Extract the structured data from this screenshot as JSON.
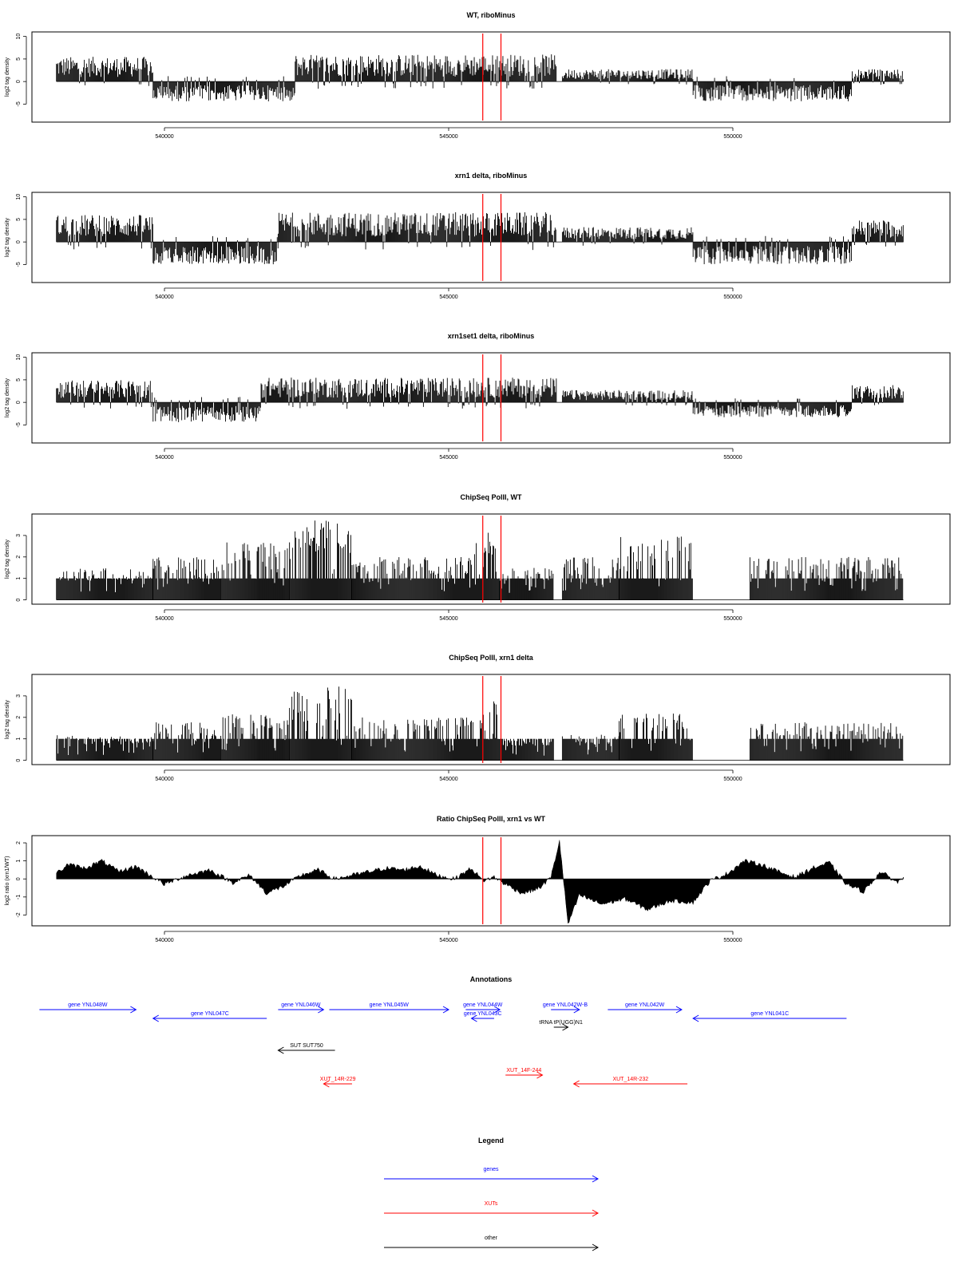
{
  "chart_data": [
    {
      "type": "bar",
      "title": "WT, riboMinus",
      "xlabel": "",
      "ylabel": "log2 tag density",
      "xlim": [
        537800,
        553000
      ],
      "ylim": [
        -9,
        11
      ],
      "yticks": [
        -5,
        0,
        5,
        10
      ],
      "xticks": [
        540000,
        545000,
        550000
      ],
      "xtick_labels": [
        "540000",
        "545000",
        "550000"
      ],
      "grid": false,
      "segments": [
        {
          "start": 538100,
          "end": 539800,
          "level": 5
        },
        {
          "start": 539800,
          "end": 542300,
          "level": -4
        },
        {
          "start": 542300,
          "end": 546900,
          "level": 5.5
        },
        {
          "start": 547000,
          "end": 549300,
          "level": 2.5
        },
        {
          "start": 549300,
          "end": 552100,
          "level": -4
        },
        {
          "start": 552100,
          "end": 553000,
          "level": 2.5
        }
      ],
      "markers": [
        545600,
        545920
      ]
    },
    {
      "type": "bar",
      "title": "xrn1 delta, riboMinus",
      "xlabel": "",
      "ylabel": "log2 tag density",
      "xlim": [
        537800,
        553000
      ],
      "ylim": [
        -9,
        11
      ],
      "yticks": [
        -5,
        0,
        5,
        10
      ],
      "xticks": [
        540000,
        545000,
        550000
      ],
      "xtick_labels": [
        "540000",
        "545000",
        "550000"
      ],
      "grid": false,
      "segments": [
        {
          "start": 538100,
          "end": 539800,
          "level": 5.5
        },
        {
          "start": 539800,
          "end": 542000,
          "level": -4.5
        },
        {
          "start": 542000,
          "end": 546900,
          "level": 6
        },
        {
          "start": 547000,
          "end": 549300,
          "level": 3
        },
        {
          "start": 549300,
          "end": 552100,
          "level": -4.5
        },
        {
          "start": 552100,
          "end": 553000,
          "level": 4.5
        }
      ],
      "markers": [
        545600,
        545920
      ]
    },
    {
      "type": "bar",
      "title": "xrn1set1 delta, riboMinus",
      "xlabel": "",
      "ylabel": "log2 tag density",
      "xlim": [
        537800,
        553000
      ],
      "ylim": [
        -9,
        11
      ],
      "yticks": [
        -5,
        0,
        5,
        10
      ],
      "xticks": [
        540000,
        545000,
        550000
      ],
      "xtick_labels": [
        "540000",
        "545000",
        "550000"
      ],
      "grid": false,
      "segments": [
        {
          "start": 538100,
          "end": 539800,
          "level": 4.5
        },
        {
          "start": 539800,
          "end": 541700,
          "level": -4
        },
        {
          "start": 541700,
          "end": 546900,
          "level": 5
        },
        {
          "start": 547000,
          "end": 549300,
          "level": 2.5
        },
        {
          "start": 549300,
          "end": 552100,
          "level": -3
        },
        {
          "start": 552100,
          "end": 553000,
          "level": 3.5
        }
      ],
      "markers": [
        545600,
        545920
      ]
    },
    {
      "type": "bar",
      "title": "ChipSeq PolII, WT",
      "xlabel": "",
      "ylabel": "log2 tag density",
      "xlim": [
        537800,
        553000
      ],
      "ylim": [
        -0.2,
        4
      ],
      "yticks": [
        0,
        1,
        2,
        3
      ],
      "xticks": [
        540000,
        545000,
        550000
      ],
      "xtick_labels": [
        "540000",
        "545000",
        "550000"
      ],
      "grid": false,
      "segments": [
        {
          "start": 538100,
          "end": 539800,
          "level": 1.5
        },
        {
          "start": 539800,
          "end": 541000,
          "level": 2
        },
        {
          "start": 541000,
          "end": 542200,
          "level": 2.7
        },
        {
          "start": 542200,
          "end": 543300,
          "level": 3.7
        },
        {
          "start": 543300,
          "end": 545400,
          "level": 2
        },
        {
          "start": 545400,
          "end": 545900,
          "level": 3.2
        },
        {
          "start": 545900,
          "end": 546850,
          "level": 1.5
        },
        {
          "start": 547000,
          "end": 548000,
          "level": 2
        },
        {
          "start": 548000,
          "end": 549300,
          "level": 3
        },
        {
          "start": 550300,
          "end": 553000,
          "level": 2
        }
      ],
      "markers": [
        545600,
        545920
      ]
    },
    {
      "type": "bar",
      "title": "ChipSeq PolII, xrn1 delta",
      "xlabel": "",
      "ylabel": "log2 tag density",
      "xlim": [
        537800,
        553000
      ],
      "ylim": [
        -0.2,
        4
      ],
      "yticks": [
        0,
        1,
        2,
        3
      ],
      "xticks": [
        540000,
        545000,
        550000
      ],
      "xtick_labels": [
        "540000",
        "545000",
        "550000"
      ],
      "grid": false,
      "segments": [
        {
          "start": 538100,
          "end": 539800,
          "level": 1.2
        },
        {
          "start": 539800,
          "end": 541000,
          "level": 1.8
        },
        {
          "start": 541000,
          "end": 542200,
          "level": 2.2
        },
        {
          "start": 542200,
          "end": 543300,
          "level": 3.6
        },
        {
          "start": 543300,
          "end": 545400,
          "level": 2
        },
        {
          "start": 545400,
          "end": 545920,
          "level": 2.8
        },
        {
          "start": 545920,
          "end": 546850,
          "level": 1
        },
        {
          "start": 547000,
          "end": 548000,
          "level": 1.2
        },
        {
          "start": 548000,
          "end": 549300,
          "level": 2.2
        },
        {
          "start": 550300,
          "end": 553000,
          "level": 1.8
        }
      ],
      "markers": [
        545600,
        545920
      ]
    },
    {
      "type": "area",
      "title": "Ratio ChipSeq PolII, xrn1 vs WT",
      "xlabel": "",
      "ylabel": "log2 ratio (xrn1/WT)",
      "xlim": [
        537800,
        553000
      ],
      "ylim": [
        -2.6,
        2.4
      ],
      "yticks": [
        -2,
        -1,
        0,
        1,
        2
      ],
      "xticks": [
        540000,
        545000,
        550000
      ],
      "xtick_labels": [
        "540000",
        "545000",
        "550000"
      ],
      "grid": false,
      "x": [
        538100,
        538300,
        538600,
        538900,
        539200,
        539500,
        539700,
        540000,
        540400,
        540800,
        541200,
        541500,
        541800,
        542100,
        542400,
        542700,
        543000,
        543300,
        543600,
        543900,
        544200,
        544500,
        544800,
        545100,
        545400,
        545600,
        545800,
        546000,
        546300,
        546600,
        546800,
        546950,
        547100,
        547300,
        547700,
        548100,
        548500,
        548900,
        549300,
        549600,
        549900,
        550200,
        550500,
        550800,
        551100,
        551400,
        551700,
        552000,
        552300,
        552600,
        552900,
        553000
      ],
      "y": [
        0.3,
        0.8,
        0.6,
        1.0,
        0.4,
        0.7,
        0.3,
        -0.3,
        0.2,
        0.5,
        -0.2,
        0.2,
        -0.8,
        -0.4,
        0.2,
        0.5,
        0.0,
        0.2,
        0.4,
        0.6,
        0.5,
        0.7,
        0.2,
        0.0,
        0.6,
        -0.1,
        0.1,
        -0.3,
        -0.8,
        -0.5,
        0.1,
        2.1,
        -2.5,
        -0.9,
        -1.4,
        -1.1,
        -1.7,
        -1.2,
        -1.3,
        -0.1,
        0.3,
        1.0,
        0.8,
        0.4,
        0.1,
        0.6,
        0.9,
        -0.3,
        -0.7,
        0.4,
        -0.2,
        0.1
      ],
      "markers": [
        545600,
        545920
      ]
    }
  ],
  "annotations": {
    "title": "Annotations",
    "features": [
      {
        "label": "gene YNL048W",
        "start": 537800,
        "end": 539500,
        "strand": "+",
        "type": "genes"
      },
      {
        "label": "gene YNL047C",
        "start": 539800,
        "end": 541800,
        "strand": "-",
        "type": "genes"
      },
      {
        "label": "gene YNL046W",
        "start": 542000,
        "end": 542800,
        "strand": "+",
        "type": "genes"
      },
      {
        "label": "gene YNL045W",
        "start": 542900,
        "end": 545000,
        "strand": "+",
        "type": "genes"
      },
      {
        "label": "gene YNL044W",
        "start": 545300,
        "end": 545900,
        "strand": "+",
        "type": "genes"
      },
      {
        "label": "gene YNL043C",
        "start": 545400,
        "end": 545800,
        "strand": "-",
        "type": "genes"
      },
      {
        "label": "gene YNL042W-B",
        "start": 546800,
        "end": 547300,
        "strand": "+",
        "type": "genes"
      },
      {
        "label": "gene YNL042W",
        "start": 547800,
        "end": 549100,
        "strand": "+",
        "type": "genes"
      },
      {
        "label": "gene YNL041C",
        "start": 549300,
        "end": 552000,
        "strand": "-",
        "type": "genes"
      },
      {
        "label": "tRNA tP(UGG)N1",
        "start": 546850,
        "end": 547100,
        "strand": "+",
        "type": "other"
      },
      {
        "label": "SUT SUT750",
        "start": 542000,
        "end": 543000,
        "strand": "-",
        "type": "other"
      },
      {
        "label": "XUT_14R-229",
        "start": 542800,
        "end": 543300,
        "strand": "-",
        "type": "XUTs"
      },
      {
        "label": "XUT_14F-244",
        "start": 546000,
        "end": 546650,
        "strand": "+",
        "type": "XUTs"
      },
      {
        "label": "XUT_14R-232",
        "start": 547200,
        "end": 549200,
        "strand": "-",
        "type": "XUTs"
      }
    ]
  },
  "legend": {
    "title": "Legend",
    "items": [
      {
        "label": "genes",
        "color": "#0000ff"
      },
      {
        "label": "XUTs",
        "color": "#ff0000"
      },
      {
        "label": "other",
        "color": "#000000"
      }
    ]
  },
  "colors": {
    "bars": "#000000",
    "markers": "#ff0000",
    "axis": "#000000"
  }
}
